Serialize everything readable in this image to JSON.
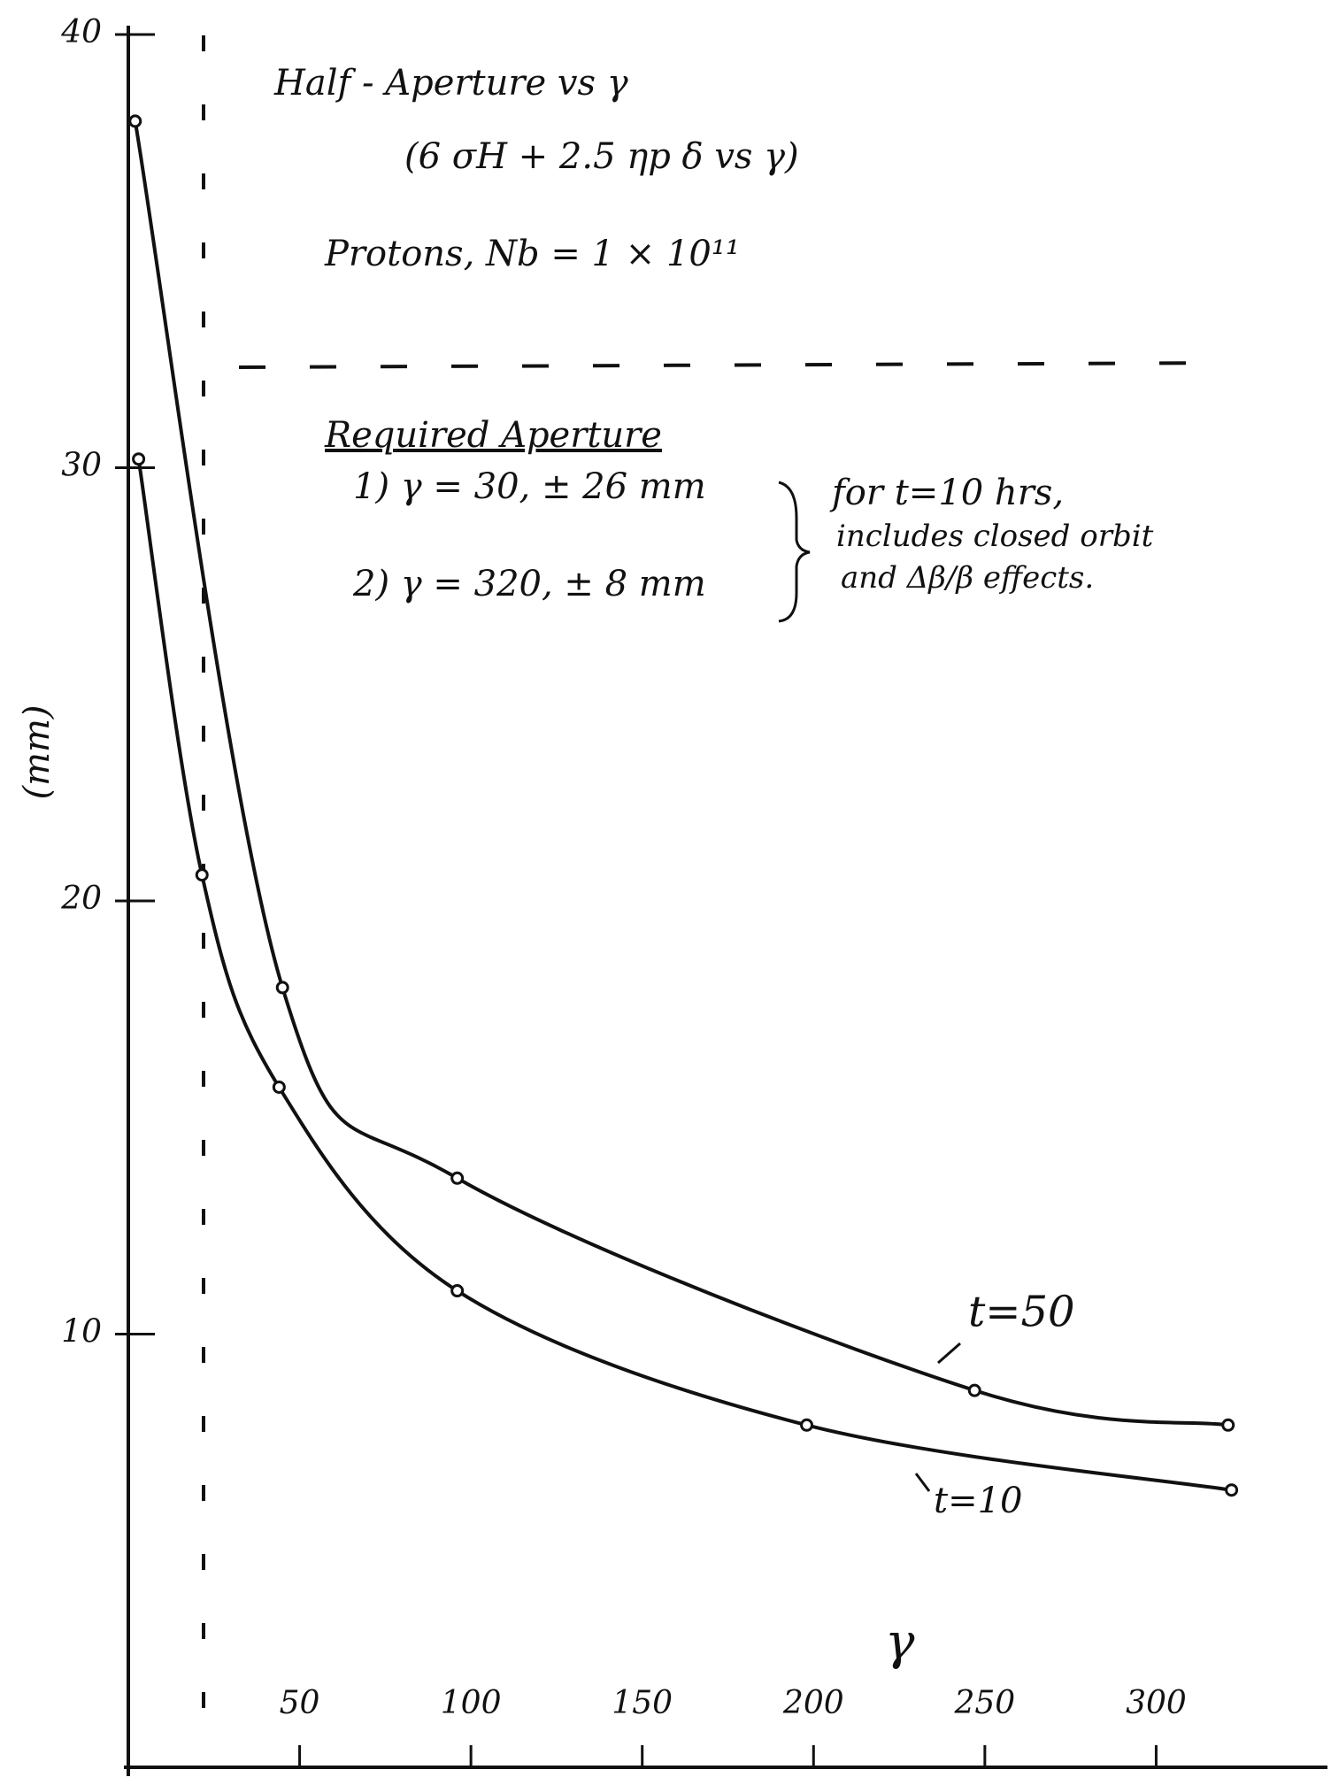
{
  "chart_data": {
    "type": "line",
    "title": "Half - Aperture vs γ",
    "subtitle": "(6 σH + 2.5 ηp δ vs γ)",
    "annotations": [
      "Protons, Nb = 1 × 10¹¹",
      "Required Aperture",
      "1) γ = 30, ± 26 mm",
      "2) γ = 320, ± 8 mm",
      "for t=10 hrs,",
      "includes closed orbit",
      "and Δβ/β effects."
    ],
    "x_label": "γ",
    "y_label": "(mm)",
    "xlim": [
      0,
      350
    ],
    "ylim": [
      0,
      40
    ],
    "xticks": [
      50,
      100,
      150,
      200,
      250,
      300
    ],
    "yticks": [
      10,
      20,
      30,
      40
    ],
    "series": [
      {
        "name": "t=50",
        "color": "#111111",
        "x": [
          2,
          45,
          96,
          247,
          321
        ],
        "values": [
          38,
          18,
          13.6,
          8.7,
          7.9
        ]
      },
      {
        "name": "t=10",
        "color": "#111111",
        "x": [
          3,
          21.5,
          44,
          96,
          198,
          322
        ],
        "values": [
          30.2,
          20.6,
          15.7,
          11,
          7.9,
          6.4
        ]
      }
    ]
  }
}
